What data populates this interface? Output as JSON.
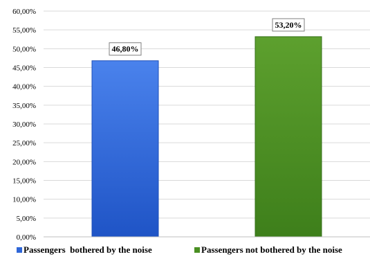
{
  "chart_data": {
    "type": "bar",
    "categories": [
      "Passengers  bothered by the noise",
      "Passengers not bothered by the noise"
    ],
    "values": [
      46.8,
      53.2
    ],
    "data_labels": [
      "46,80%",
      "53,20%"
    ],
    "bar_colors": [
      "#2f67d8",
      "#4a8f22"
    ],
    "ylim": [
      0,
      60
    ],
    "yticks": [
      "0,00%",
      "5,00%",
      "10,00%",
      "15,00%",
      "20,00%",
      "25,00%",
      "30,00%",
      "35,00%",
      "40,00%",
      "45,00%",
      "50,00%",
      "55,00%",
      "60,00%"
    ],
    "grid": true,
    "legend": {
      "position": "bottom",
      "entries": [
        "Passengers  bothered by the noise",
        "Passengers not bothered by the noise"
      ]
    },
    "title": "",
    "xlabel": "",
    "ylabel": ""
  }
}
